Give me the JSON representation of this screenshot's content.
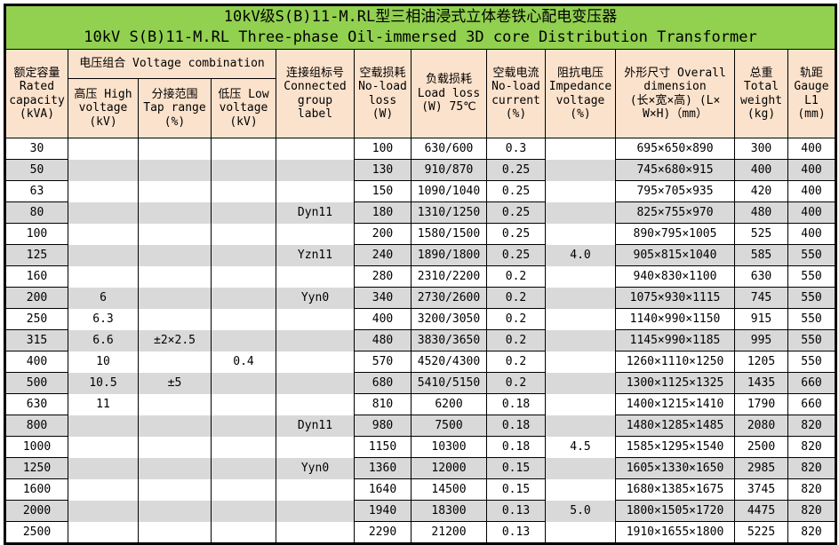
{
  "title": {
    "line1": "10kV级S(B)11-M.RL型三相油浸式立体卷铁心配电变压器",
    "line2": "10kV S(B)11-M.RL Three-phase Oil-immersed 3D core Distribution Transformer"
  },
  "colors": {
    "title_bg": "#92D050",
    "header_bg": "#FBE2CC",
    "stripe_bg": "#D9D9D9",
    "border": "#000000",
    "text": "#000000"
  },
  "header": {
    "capacity": "额定容量\nRated\ncapacity\n(kVA)",
    "voltage_combination": "电压组合 Voltage combination",
    "high_voltage": "高压 High\nvoltage\n(kV)",
    "tap_range": "分接范围\nTap range\n(%)",
    "low_voltage": "低压 Low\nvoltage\n(kV)",
    "group_label": "连接组标号\nConnected\ngroup\nlabel",
    "no_load_loss": "空载损耗\nNo-load\nloss\n(W)",
    "load_loss": "负载损耗\nLoad loss\n(W) 75℃",
    "no_load_current": "空载电流\nNo-load\ncurrent\n(%)",
    "impedance_voltage": "阻抗电压\nImpedance\nvoltage\n(%)",
    "dimension": "外形尺寸 Overall\ndimension\n(长×宽×高) (L×\nW×H)（mm）",
    "total_weight": "总重\nTotal\nweight\n(kg)",
    "gauge": "轨距\nGauge\nL1\n(mm)"
  },
  "column_keys": [
    "capacity",
    "high_voltage",
    "tap_range",
    "low_voltage",
    "group_label",
    "no_load_loss",
    "load_loss",
    "no_load_current",
    "impedance_voltage",
    "dimension",
    "total_weight",
    "gauge"
  ],
  "merged_border_columns": [
    1,
    2,
    3,
    4,
    8
  ],
  "rows": [
    [
      "30",
      "",
      "",
      "",
      "",
      "100",
      "630/600",
      "0.3",
      "",
      "695×650×890",
      "300",
      "400"
    ],
    [
      "50",
      "",
      "",
      "",
      "",
      "130",
      "910/870",
      "0.25",
      "",
      "745×680×915",
      "400",
      "400"
    ],
    [
      "63",
      "",
      "",
      "",
      "",
      "150",
      "1090/1040",
      "0.25",
      "",
      "795×705×935",
      "420",
      "400"
    ],
    [
      "80",
      "",
      "",
      "",
      "Dyn11",
      "180",
      "1310/1250",
      "0.25",
      "",
      "825×755×970",
      "480",
      "400"
    ],
    [
      "100",
      "",
      "",
      "",
      "",
      "200",
      "1580/1500",
      "0.25",
      "",
      "890×795×1005",
      "525",
      "400"
    ],
    [
      "125",
      "",
      "",
      "",
      "Yzn11",
      "240",
      "1890/1800",
      "0.25",
      "4.0",
      "905×815×1040",
      "585",
      "550"
    ],
    [
      "160",
      "",
      "",
      "",
      "",
      "280",
      "2310/2200",
      "0.2",
      "",
      "940×830×1100",
      "630",
      "550"
    ],
    [
      "200",
      "6",
      "",
      "",
      "Yyn0",
      "340",
      "2730/2600",
      "0.2",
      "",
      "1075×930×1115",
      "745",
      "550"
    ],
    [
      "250",
      "6.3",
      "",
      "",
      "",
      "400",
      "3200/3050",
      "0.2",
      "",
      "1140×990×1150",
      "915",
      "550"
    ],
    [
      "315",
      "6.6",
      "±2×2.5",
      "",
      "",
      "480",
      "3830/3650",
      "0.2",
      "",
      "1145×990×1185",
      "995",
      "550"
    ],
    [
      "400",
      "10",
      "",
      "0.4",
      "",
      "570",
      "4520/4300",
      "0.2",
      "",
      "1260×1110×1250",
      "1205",
      "550"
    ],
    [
      "500",
      "10.5",
      "±5",
      "",
      "",
      "680",
      "5410/5150",
      "0.2",
      "",
      "1300×1125×1325",
      "1435",
      "660"
    ],
    [
      "630",
      "11",
      "",
      "",
      "",
      "810",
      "6200",
      "0.18",
      "",
      "1400×1215×1410",
      "1790",
      "660"
    ],
    [
      "800",
      "",
      "",
      "",
      "Dyn11",
      "980",
      "7500",
      "0.18",
      "",
      "1480×1285×1485",
      "2080",
      "820"
    ],
    [
      "1000",
      "",
      "",
      "",
      "",
      "1150",
      "10300",
      "0.18",
      "4.5",
      "1585×1295×1540",
      "2500",
      "820"
    ],
    [
      "1250",
      "",
      "",
      "",
      "Yyn0",
      "1360",
      "12000",
      "0.15",
      "",
      "1605×1330×1650",
      "2985",
      "820"
    ],
    [
      "1600",
      "",
      "",
      "",
      "",
      "1640",
      "14500",
      "0.15",
      "",
      "1680×1385×1675",
      "3745",
      "820"
    ],
    [
      "2000",
      "",
      "",
      "",
      "",
      "1940",
      "18300",
      "0.13",
      "5.0",
      "1800×1505×1720",
      "4475",
      "820"
    ],
    [
      "2500",
      "",
      "",
      "",
      "",
      "2290",
      "21200",
      "0.13",
      "",
      "1910×1655×1800",
      "5225",
      "820"
    ]
  ]
}
